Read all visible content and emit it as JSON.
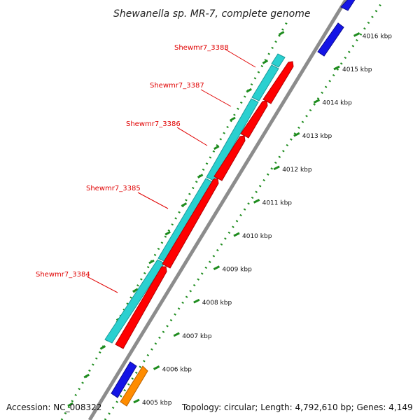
{
  "title": "Shewanella sp. MR-7, complete genome",
  "accession": "Accession: NC_008322",
  "topology": "Topology: circular; Length: 4,792,610 bp; Genes: 4,149",
  "colors": {
    "backbone": "#8c8c8c",
    "tick_green": "#1e8c1e",
    "cds_cyan": "#2ad0d0",
    "cds_red": "#ff0000",
    "cds_blue": "#1414e6",
    "cds_orange": "#ff8c00",
    "label_red": "#e00000"
  },
  "ticks": [
    {
      "label": "4005 kbp"
    },
    {
      "label": "4006 kbp"
    },
    {
      "label": "4007 kbp"
    },
    {
      "label": "4008 kbp"
    },
    {
      "label": "4009 kbp"
    },
    {
      "label": "4010 kbp"
    },
    {
      "label": "4011 kbp"
    },
    {
      "label": "4012 kbp"
    },
    {
      "label": "4013 kbp"
    },
    {
      "label": "4014 kbp"
    },
    {
      "label": "4015 kbp"
    },
    {
      "label": "4016 kbp"
    }
  ],
  "gene_labels": [
    {
      "name": "Shewmr7_3388"
    },
    {
      "name": "Shewmr7_3387"
    },
    {
      "name": "Shewmr7_3386"
    },
    {
      "name": "Shewmr7_3385"
    },
    {
      "name": "Shewmr7_3384"
    }
  ]
}
